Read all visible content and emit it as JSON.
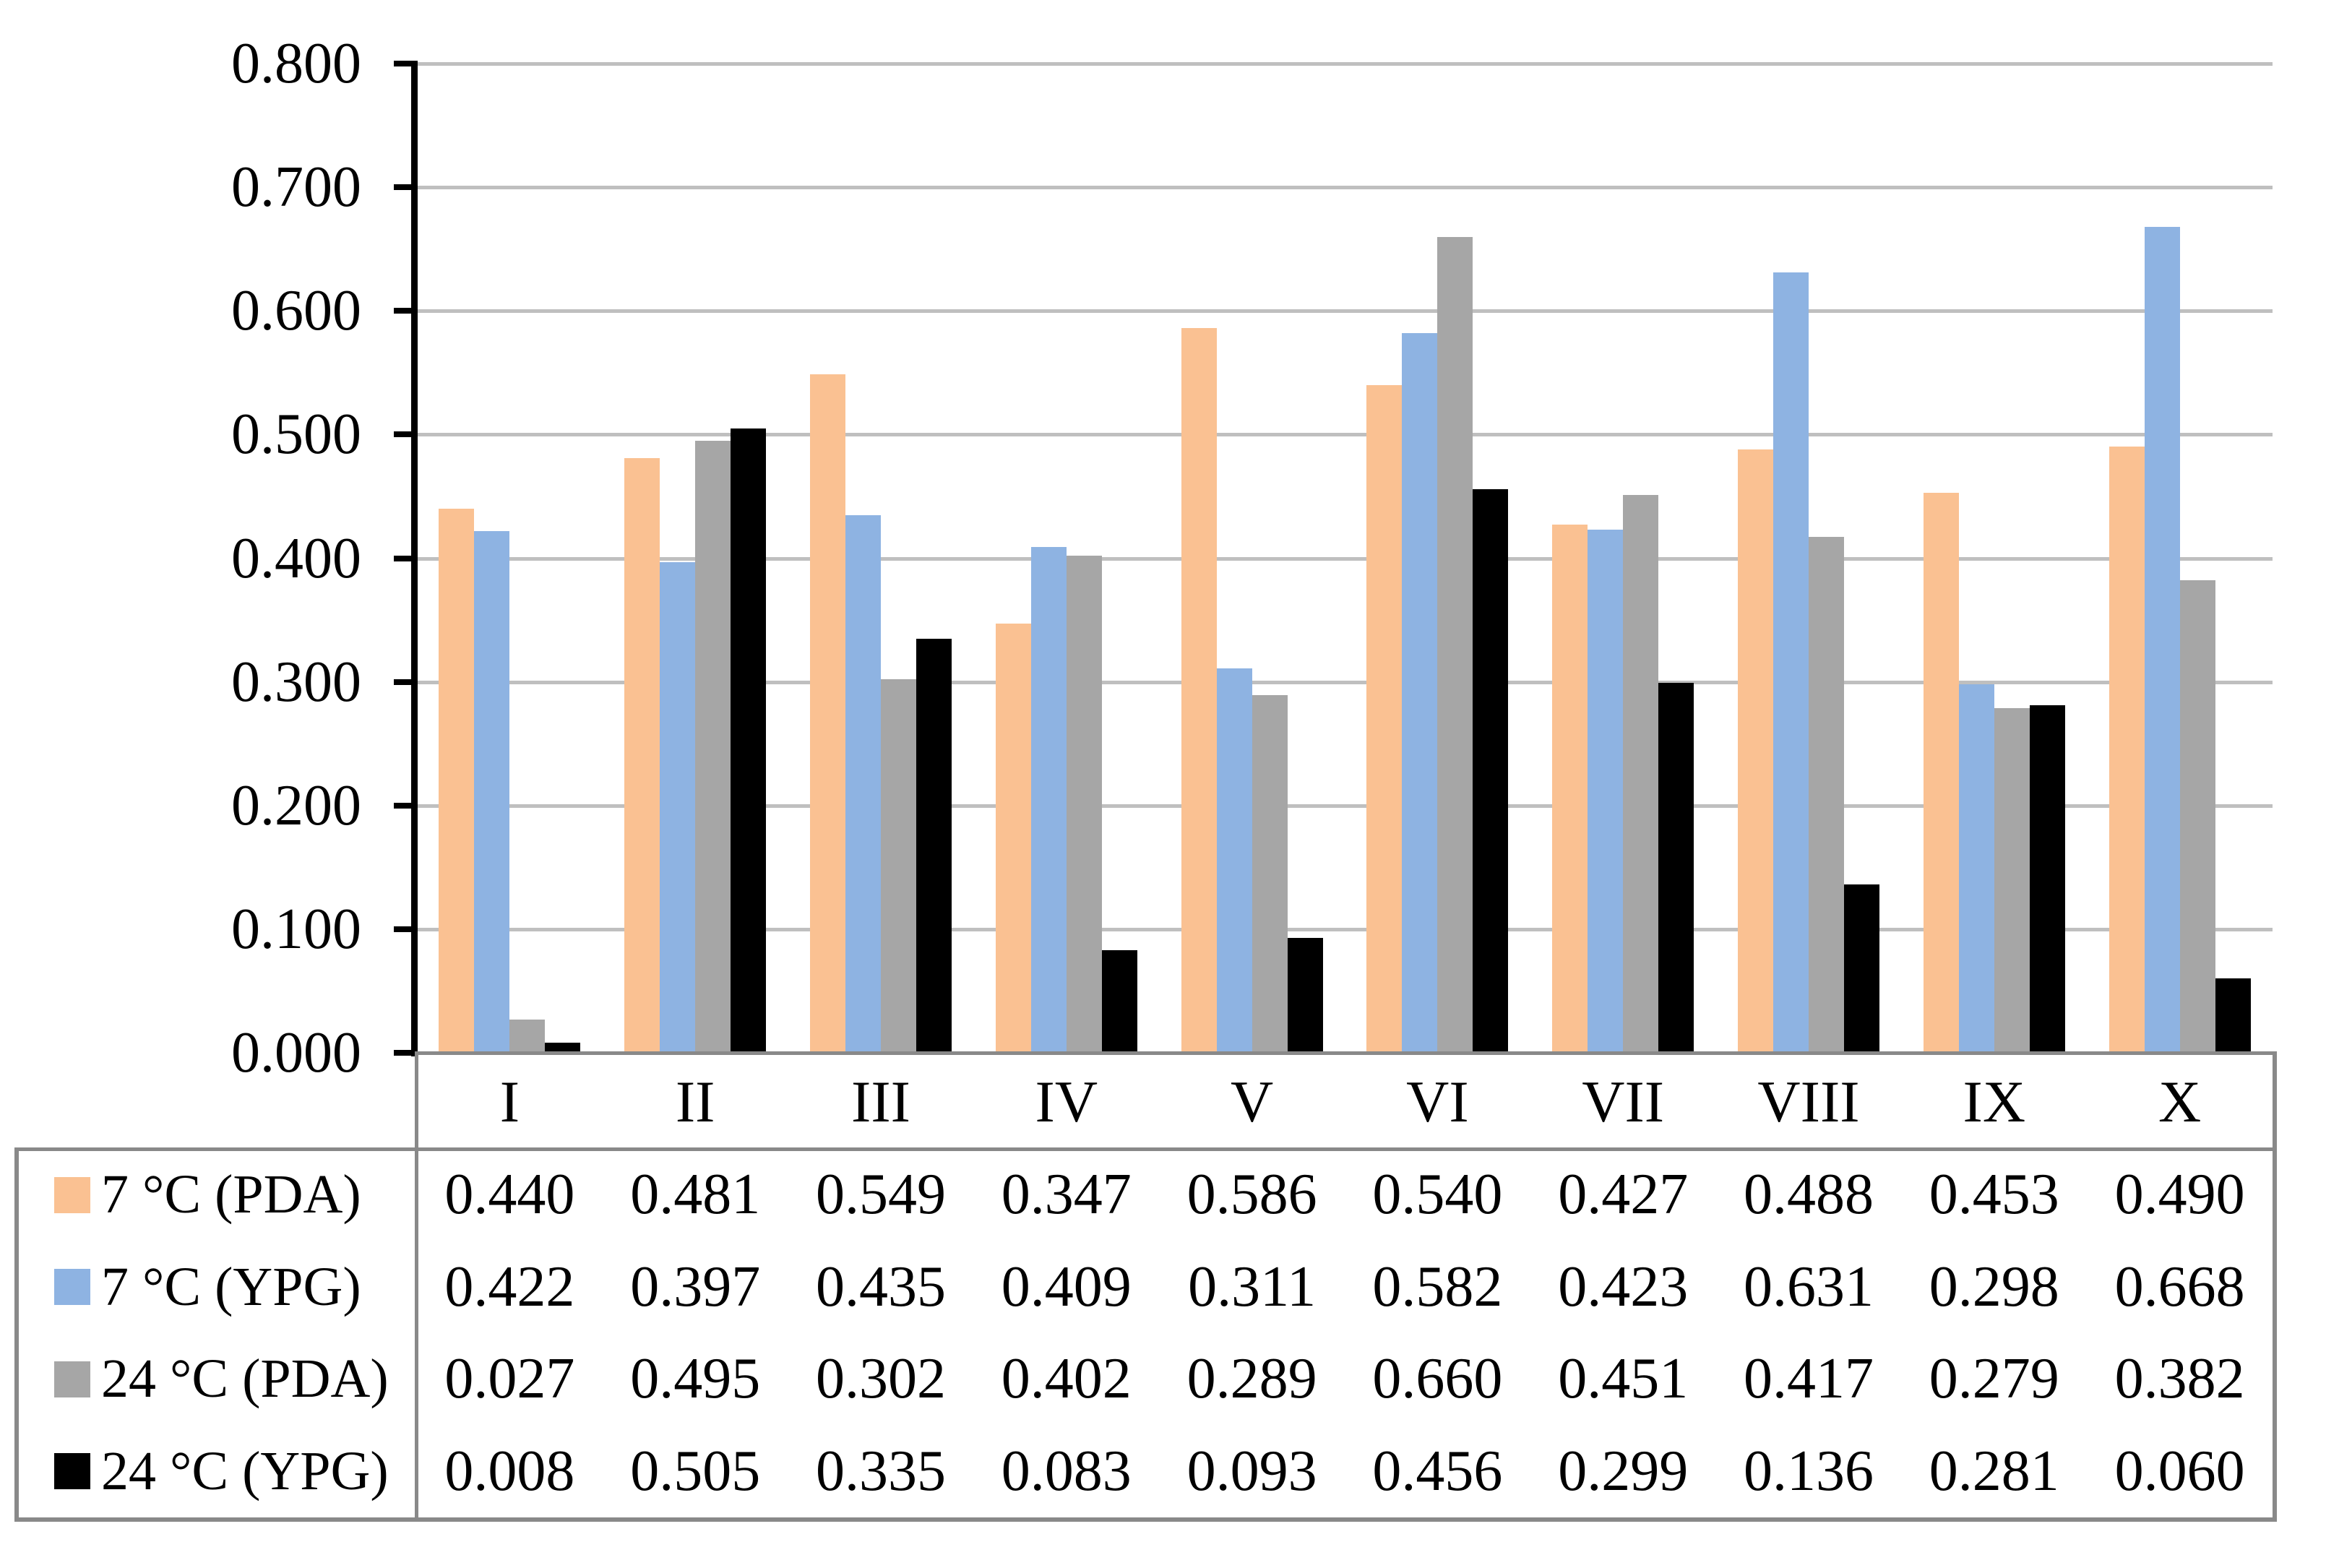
{
  "figure": {
    "background": "#FFFFFF"
  },
  "chart_data": {
    "type": "bar",
    "title": "",
    "xlabel": "",
    "ylabel": "",
    "categories": [
      "I",
      "II",
      "III",
      "IV",
      "V",
      "VI",
      "VII",
      "VIII",
      "IX",
      "X"
    ],
    "series": [
      {
        "name": "7 °C (PDA)",
        "color": "#FAC192",
        "values": [
          0.44,
          0.481,
          0.549,
          0.347,
          0.586,
          0.54,
          0.427,
          0.488,
          0.453,
          0.49
        ]
      },
      {
        "name": "7 °C (YPG)",
        "color": "#8EB3E2",
        "values": [
          0.422,
          0.397,
          0.435,
          0.409,
          0.311,
          0.582,
          0.423,
          0.631,
          0.298,
          0.668
        ]
      },
      {
        "name": "24 °C (PDA)",
        "color": "#A6A6A6",
        "values": [
          0.027,
          0.495,
          0.302,
          0.402,
          0.289,
          0.66,
          0.451,
          0.417,
          0.279,
          0.382
        ]
      },
      {
        "name": "24 °C (YPG)",
        "color": "#000000",
        "values": [
          0.008,
          0.505,
          0.335,
          0.083,
          0.093,
          0.456,
          0.299,
          0.136,
          0.281,
          0.06
        ]
      }
    ],
    "ylim": [
      0,
      0.8
    ],
    "ytick_step": 0.1,
    "ytick_labels": [
      "0.000",
      "0.100",
      "0.200",
      "0.300",
      "0.400",
      "0.500",
      "0.600",
      "0.700",
      "0.800"
    ],
    "grid": true,
    "gridline_color": "#BFBFBF",
    "axis_color": "#000000",
    "table_border_color": "#898989",
    "value_decimals": 3,
    "legend_position": "data-table-left-keys"
  }
}
